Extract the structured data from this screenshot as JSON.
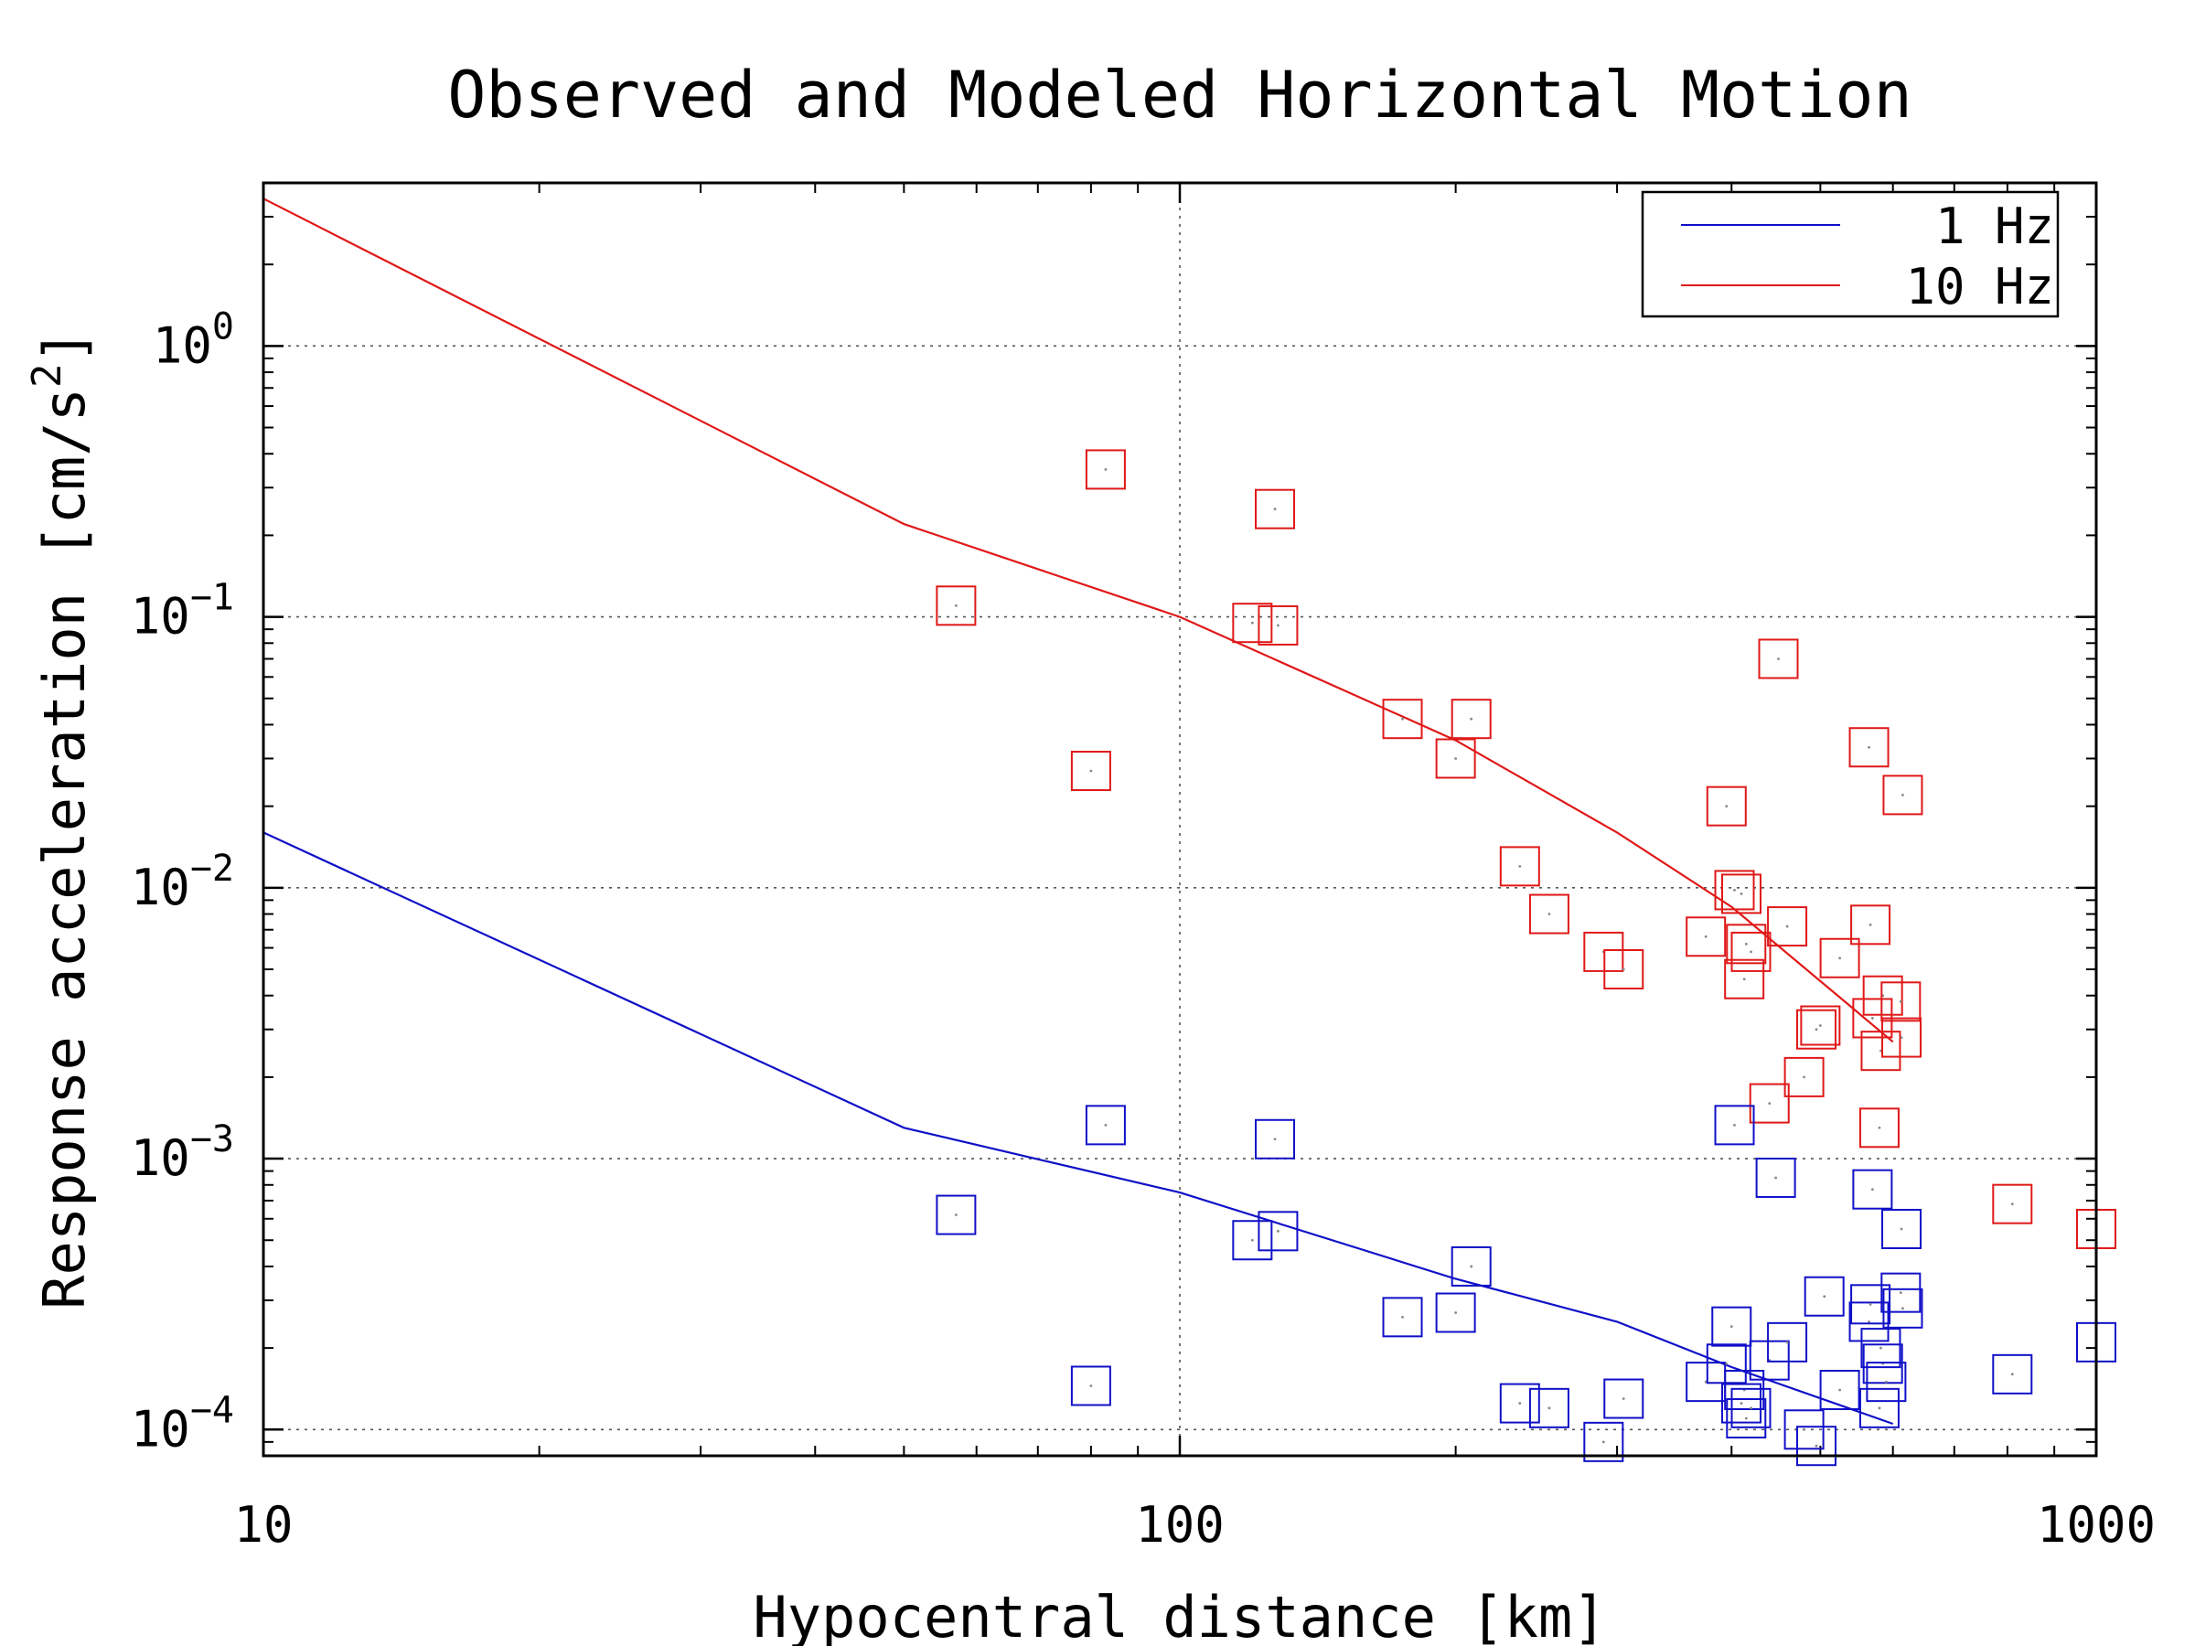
{
  "chart_data": {
    "type": "scatter",
    "title": "Observed and Modeled Horizontal Motion",
    "xlabel": "Hypocentral distance [km]",
    "ylabel": "Response acceleration [cm/s²]",
    "ylabel_parts": {
      "main": "Response acceleration [cm/s",
      "sup": "2",
      "end": "]"
    },
    "x_scale": "log",
    "y_scale": "log",
    "xlim": [
      10,
      1000
    ],
    "ylim": [
      8e-05,
      4
    ],
    "x_ticks": [
      {
        "value": 10,
        "label": "10"
      },
      {
        "value": 100,
        "label": "100"
      },
      {
        "value": 1000,
        "label": "1000"
      }
    ],
    "y_ticks": [
      {
        "value": 1,
        "base": "10",
        "exp": "0"
      },
      {
        "value": 0.1,
        "base": "10",
        "exp": "−1"
      },
      {
        "value": 0.01,
        "base": "10",
        "exp": "−2"
      },
      {
        "value": 0.001,
        "base": "10",
        "exp": "−3"
      },
      {
        "value": 0.0001,
        "base": "10",
        "exp": "−4"
      }
    ],
    "grid": true,
    "legend_position": "top-right",
    "colors": {
      "one_hz": "#1010c8",
      "ten_hz": "#e01818"
    },
    "model_lines": [
      {
        "name": "1 Hz",
        "color": "#1010c8",
        "x": [
          10,
          50,
          100,
          200,
          300,
          400,
          600
        ],
        "y": [
          0.016,
          0.0013,
          0.00075,
          0.00036,
          0.00025,
          0.00017,
          0.000105
        ]
      },
      {
        "name": "10 Hz",
        "color": "#e01818",
        "x": [
          10,
          50,
          100,
          200,
          300,
          400,
          600
        ],
        "y": [
          3.5,
          0.22,
          0.1,
          0.035,
          0.016,
          0.0085,
          0.0027
        ]
      }
    ],
    "observations": [
      {
        "name": "10 Hz observed",
        "color": "#e01818",
        "points": [
          [
            57,
            0.11
          ],
          [
            80,
            0.027
          ],
          [
            83,
            0.35
          ],
          [
            120,
            0.095
          ],
          [
            127,
            0.25
          ],
          [
            128,
            0.093
          ],
          [
            175,
            0.042
          ],
          [
            200,
            0.03
          ],
          [
            208,
            0.042
          ],
          [
            235,
            0.012
          ],
          [
            253,
            0.008
          ],
          [
            290,
            0.0058
          ],
          [
            305,
            0.005
          ],
          [
            375,
            0.0066
          ],
          [
            395,
            0.02
          ],
          [
            403,
            0.0098
          ],
          [
            410,
            0.0095
          ],
          [
            413,
            0.0046
          ],
          [
            415,
            0.0062
          ],
          [
            420,
            0.0058
          ],
          [
            440,
            0.0016
          ],
          [
            450,
            0.07
          ],
          [
            460,
            0.0072
          ],
          [
            480,
            0.002
          ],
          [
            495,
            0.003
          ],
          [
            500,
            0.0031
          ],
          [
            525,
            0.0055
          ],
          [
            565,
            0.033
          ],
          [
            567,
            0.0073
          ],
          [
            570,
            0.0033
          ],
          [
            580,
            0.0013
          ],
          [
            582,
            0.0025
          ],
          [
            585,
            0.004
          ],
          [
            612,
            0.0038
          ],
          [
            613,
            0.0028
          ],
          [
            615,
            0.022
          ],
          [
            810,
            0.00068
          ],
          [
            1000,
            0.00055
          ]
        ]
      },
      {
        "name": "1 Hz observed",
        "color": "#1010c8",
        "points": [
          [
            57,
            0.00062
          ],
          [
            80,
            0.000145
          ],
          [
            83,
            0.00133
          ],
          [
            120,
            0.0005
          ],
          [
            127,
            0.00118
          ],
          [
            128,
            0.00054
          ],
          [
            175,
            0.00026
          ],
          [
            200,
            0.00027
          ],
          [
            208,
            0.0004
          ],
          [
            235,
            0.000125
          ],
          [
            253,
            0.00012
          ],
          [
            290,
            9e-05
          ],
          [
            305,
            0.00013
          ],
          [
            375,
            0.00015
          ],
          [
            395,
            0.000175
          ],
          [
            400,
            0.00024
          ],
          [
            403,
            0.00133
          ],
          [
            410,
            0.000125
          ],
          [
            413,
            0.00014
          ],
          [
            415,
            0.00011
          ],
          [
            420,
            0.00012
          ],
          [
            440,
            0.00018
          ],
          [
            447,
            0.00085
          ],
          [
            460,
            0.00021
          ],
          [
            480,
            0.0001
          ],
          [
            495,
            8.7e-05
          ],
          [
            505,
            0.00031
          ],
          [
            525,
            0.00014
          ],
          [
            565,
            0.00025
          ],
          [
            567,
            0.00029
          ],
          [
            570,
            0.00077
          ],
          [
            580,
            0.00012
          ],
          [
            582,
            0.0002
          ],
          [
            585,
            0.000175
          ],
          [
            590,
            0.00015
          ],
          [
            612,
            0.00032
          ],
          [
            613,
            0.00055
          ],
          [
            615,
            0.00028
          ],
          [
            810,
            0.00016
          ],
          [
            1000,
            0.00021
          ]
        ]
      }
    ]
  }
}
